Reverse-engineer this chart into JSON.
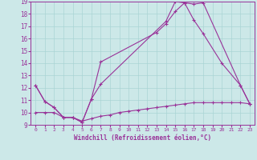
{
  "xlabel": "Windchill (Refroidissement éolien,°C)",
  "background_color": "#cce8e8",
  "grid_color": "#aad4d4",
  "line_color": "#993399",
  "spine_color": "#993399",
  "xlim": [
    -0.5,
    23.5
  ],
  "ylim": [
    9,
    19
  ],
  "xtick_labels": [
    "0",
    "1",
    "2",
    "3",
    "4",
    "5",
    "6",
    "7",
    "8",
    "9",
    "10",
    "11",
    "12",
    "13",
    "14",
    "15",
    "16",
    "17",
    "18",
    "19",
    "20",
    "21",
    "22",
    "23"
  ],
  "xtick_vals": [
    0,
    1,
    2,
    3,
    4,
    5,
    6,
    7,
    8,
    9,
    10,
    11,
    12,
    13,
    14,
    15,
    16,
    17,
    18,
    19,
    20,
    21,
    22,
    23
  ],
  "ytick_vals": [
    9,
    10,
    11,
    12,
    13,
    14,
    15,
    16,
    17,
    18,
    19
  ],
  "series": [
    {
      "x": [
        0,
        1,
        2,
        3,
        4,
        5,
        6,
        7,
        13,
        14,
        15,
        16,
        17,
        18,
        22,
        23
      ],
      "y": [
        12.2,
        10.9,
        10.4,
        9.6,
        9.6,
        9.2,
        11.1,
        14.1,
        16.5,
        17.2,
        18.2,
        18.9,
        18.8,
        18.9,
        12.2,
        10.7
      ]
    },
    {
      "x": [
        0,
        1,
        2,
        3,
        4,
        5,
        6,
        7,
        14,
        15,
        16,
        17,
        18,
        20,
        22,
        23
      ],
      "y": [
        12.2,
        10.9,
        10.4,
        9.6,
        9.6,
        9.2,
        11.1,
        12.3,
        17.4,
        19.0,
        18.9,
        17.5,
        16.4,
        14.0,
        12.2,
        10.7
      ]
    },
    {
      "x": [
        0,
        1,
        2,
        3,
        4,
        5,
        6,
        7,
        8,
        9,
        10,
        11,
        12,
        13,
        14,
        15,
        16,
        17,
        18,
        19,
        20,
        21,
        22,
        23
      ],
      "y": [
        10.0,
        10.0,
        10.0,
        9.6,
        9.6,
        9.3,
        9.5,
        9.7,
        9.8,
        10.0,
        10.1,
        10.2,
        10.3,
        10.4,
        10.5,
        10.6,
        10.7,
        10.8,
        10.8,
        10.8,
        10.8,
        10.8,
        10.8,
        10.7
      ]
    }
  ]
}
